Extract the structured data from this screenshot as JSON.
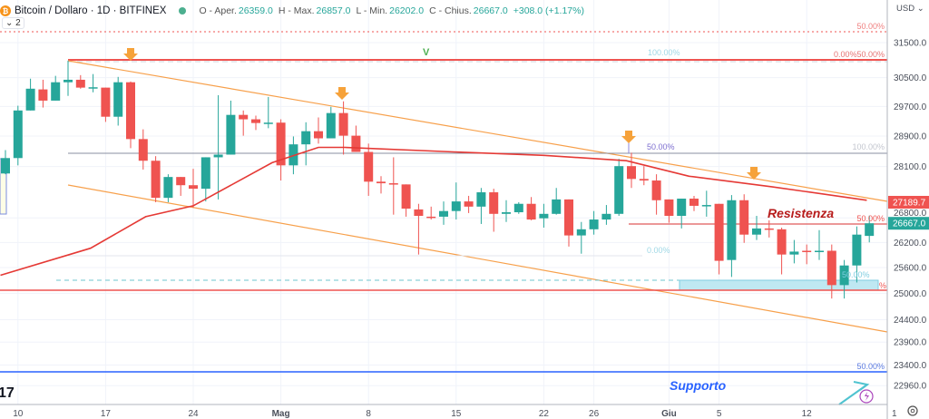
{
  "header": {
    "coin_icon": "bitcoin-icon",
    "symbol": "Bitcoin / Dollaro · 1D · BITFINEX",
    "open_label": "O - Aper.",
    "open": "26359.0",
    "high_label": "H - Max.",
    "high": "26857.0",
    "low_label": "L - Min.",
    "low": "26202.0",
    "close_label": "C - Chius.",
    "close": "26667.0",
    "change": "+308.0 (+1.17%)",
    "collapse": "⌄ 2"
  },
  "price_axis": {
    "currency": "USD ⌄",
    "settings_icon": "gear-icon"
  },
  "annotations": {
    "v_label": "V",
    "resistance": "Resistenza",
    "support": "Supporto",
    "fib_top_50": "50.00%",
    "fib_top_0_50": "0.00%50.00%",
    "fib_top_100": "100.00%",
    "fib_mid_50": "50.00%",
    "fib_mid_100": "100.00%",
    "fib_res_50": "50.00%",
    "fib_mid_0": "0.00%",
    "fib_low_50": "50.00%",
    "fib_low_pct": "%",
    "fib_support_50": "50.00%",
    "logo": "17"
  },
  "colors": {
    "up": "#26a69a",
    "down": "#ef5350",
    "ma": "#e53935",
    "trend": "#f7a04b",
    "support": "#2962ff",
    "resistance_text": "#b71c1c"
  },
  "chart_data": {
    "type": "candlestick",
    "title": "Bitcoin / Dollaro · 1D · BITFINEX",
    "scale": "log",
    "ylim": [
      22700,
      32000
    ],
    "y_ticks": [
      "31500.0",
      "30500.0",
      "29700.0",
      "28900.0",
      "28100.0",
      "26800.0",
      "26200.0",
      "25600.0",
      "25000.0",
      "24400.0",
      "23900.0",
      "23400.0",
      "22960.0"
    ],
    "y_tick_values": [
      31500,
      30500,
      29700,
      28900,
      28100,
      26800,
      26200,
      25600,
      25000,
      24400,
      23900,
      23400,
      22960
    ],
    "x_ticks": [
      {
        "label": "10",
        "index": 1
      },
      {
        "label": "17",
        "index": 8
      },
      {
        "label": "24",
        "index": 15
      },
      {
        "label": "Mag",
        "index": 22
      },
      {
        "label": "8",
        "index": 29
      },
      {
        "label": "15",
        "index": 36
      },
      {
        "label": "22",
        "index": 43
      },
      {
        "label": "26",
        "index": 47
      },
      {
        "label": "Giu",
        "index": 53
      },
      {
        "label": "5",
        "index": 57
      },
      {
        "label": "12",
        "index": 64
      },
      {
        "label": "1",
        "index": 71
      }
    ],
    "price_badges": [
      {
        "label": "27189.7",
        "value": 27189.7,
        "color": "#ef5350"
      },
      {
        "label": "26667.0",
        "value": 26667.0,
        "color": "#26a69a"
      }
    ],
    "candles": [
      [
        27920,
        28530,
        27900,
        28320
      ],
      [
        28320,
        29720,
        28130,
        29590
      ],
      [
        29590,
        30470,
        29590,
        30190
      ],
      [
        30170,
        30440,
        29670,
        29860
      ],
      [
        29860,
        30550,
        29860,
        30370
      ],
      [
        30370,
        30980,
        29990,
        30440
      ],
      [
        30440,
        30570,
        30190,
        30220
      ],
      [
        30220,
        30600,
        30090,
        30230
      ],
      [
        30220,
        30220,
        29280,
        29420
      ],
      [
        29420,
        30520,
        29180,
        30370
      ],
      [
        30370,
        30390,
        28580,
        28820
      ],
      [
        28820,
        29080,
        28020,
        28250
      ],
      [
        28250,
        28370,
        27190,
        27300
      ],
      [
        27300,
        27900,
        27190,
        27830
      ],
      [
        27830,
        27830,
        27350,
        27620
      ],
      [
        27620,
        28040,
        27050,
        27530
      ],
      [
        27530,
        28340,
        27210,
        28340
      ],
      [
        28340,
        30010,
        27260,
        28410
      ],
      [
        28410,
        29860,
        28410,
        29470
      ],
      [
        29470,
        29590,
        28910,
        29350
      ],
      [
        29350,
        29450,
        29060,
        29250
      ],
      [
        29250,
        29960,
        29110,
        29260
      ],
      [
        29260,
        29350,
        27740,
        28130
      ],
      [
        28130,
        28890,
        27900,
        28680
      ],
      [
        28680,
        29270,
        28130,
        29030
      ],
      [
        29030,
        29400,
        28700,
        28840
      ],
      [
        28840,
        29690,
        28840,
        29520
      ],
      [
        29520,
        29840,
        28410,
        28910
      ],
      [
        28910,
        29180,
        28480,
        28480
      ],
      [
        28480,
        28700,
        27350,
        27710
      ],
      [
        27710,
        27850,
        27410,
        27670
      ],
      [
        27670,
        28340,
        26880,
        27640
      ],
      [
        27640,
        27640,
        26830,
        27030
      ],
      [
        27010,
        27150,
        25910,
        26850
      ],
      [
        26830,
        27080,
        26760,
        26810
      ],
      [
        26830,
        27210,
        26630,
        26970
      ],
      [
        26970,
        27690,
        26760,
        27210
      ],
      [
        27210,
        27350,
        26920,
        27080
      ],
      [
        27080,
        27550,
        26650,
        27440
      ],
      [
        27440,
        27530,
        26460,
        26900
      ],
      [
        26900,
        27240,
        26700,
        26940
      ],
      [
        26940,
        27190,
        26900,
        27150
      ],
      [
        27150,
        27320,
        26740,
        26760
      ],
      [
        26790,
        27150,
        26560,
        26900
      ],
      [
        26900,
        27550,
        26880,
        27260
      ],
      [
        27260,
        27260,
        26100,
        26370
      ],
      [
        26370,
        26700,
        25930,
        26520
      ],
      [
        26520,
        26970,
        26390,
        26760
      ],
      [
        26760,
        27120,
        26630,
        26900
      ],
      [
        26900,
        28300,
        26850,
        28110
      ],
      [
        28110,
        28460,
        27550,
        27780
      ],
      [
        27780,
        28110,
        27620,
        27740
      ],
      [
        27740,
        27900,
        26880,
        27240
      ],
      [
        27260,
        27260,
        26680,
        26850
      ],
      [
        26850,
        27280,
        26540,
        27280
      ],
      [
        27280,
        27350,
        26970,
        27100
      ],
      [
        27100,
        27480,
        26830,
        27120
      ],
      [
        27150,
        27150,
        25440,
        25760
      ],
      [
        25780,
        27370,
        25380,
        27240
      ],
      [
        27240,
        27390,
        26190,
        26390
      ],
      [
        26390,
        26850,
        26260,
        26540
      ],
      [
        26540,
        26740,
        26320,
        26520
      ],
      [
        26520,
        26560,
        25440,
        25910
      ],
      [
        25910,
        26260,
        25700,
        25980
      ],
      [
        26000,
        26150,
        25680,
        25980
      ],
      [
        25980,
        26500,
        25780,
        26000
      ],
      [
        26000,
        26150,
        24880,
        25190
      ],
      [
        25190,
        25780,
        24880,
        25650
      ],
      [
        25650,
        26590,
        25250,
        26390
      ],
      [
        26359,
        26857,
        26202,
        26667
      ]
    ],
    "moving_average": [
      [
        -0.4,
        25420
      ],
      [
        6.8,
        26060
      ],
      [
        11.2,
        26830
      ],
      [
        15,
        27100
      ],
      [
        21.3,
        28200
      ],
      [
        25,
        28600
      ],
      [
        27.1,
        28600
      ],
      [
        35.8,
        28480
      ],
      [
        43,
        28390
      ],
      [
        49.6,
        28250
      ],
      [
        54.6,
        27850
      ],
      [
        61.2,
        27580
      ],
      [
        68.8,
        27240
      ]
    ]
  }
}
